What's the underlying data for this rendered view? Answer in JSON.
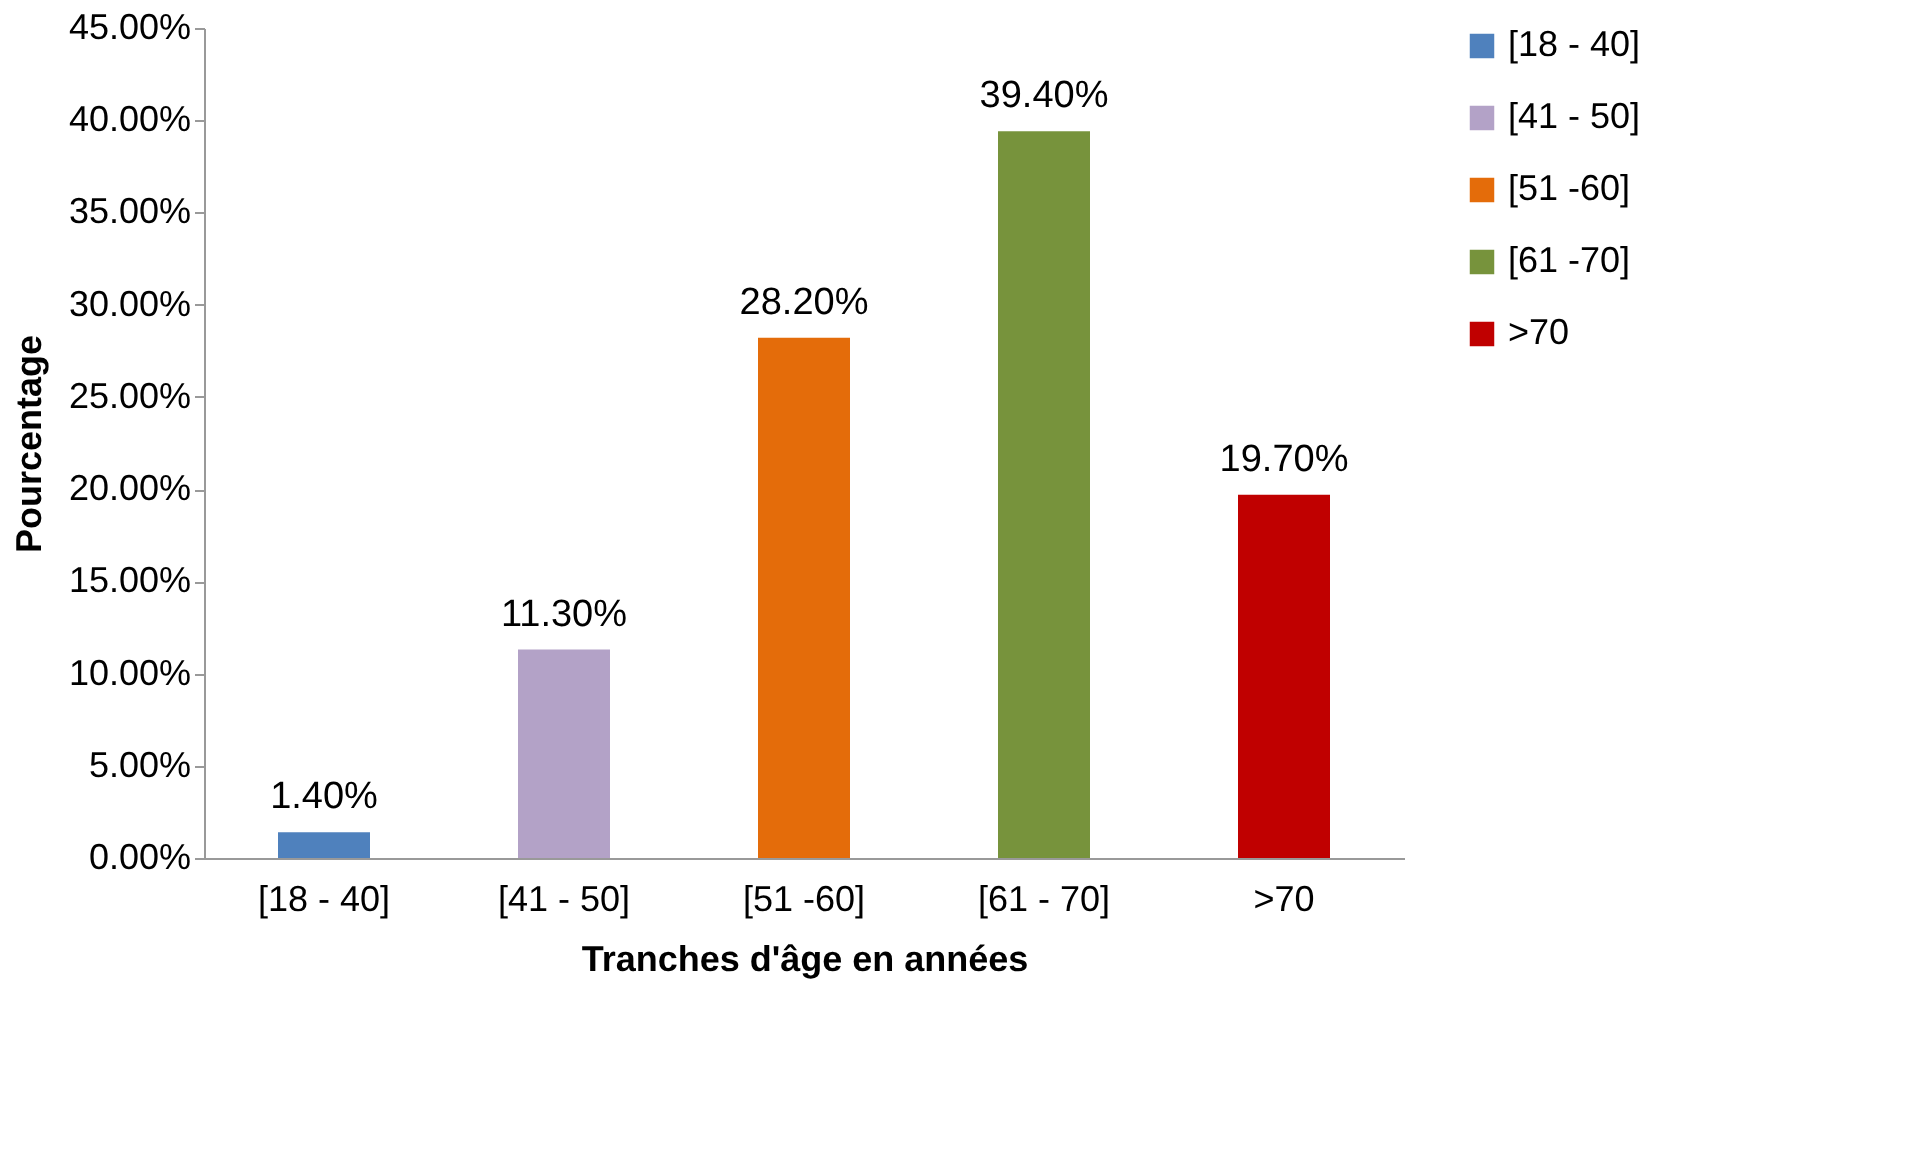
{
  "chart_data": {
    "type": "bar",
    "xlabel": "Tranches d'âge en années",
    "ylabel": "Pourcentage",
    "categories": [
      "[18 - 40]",
      "[41 - 50]",
      "[51 -60]",
      "[61 - 70]",
      ">70"
    ],
    "series": [
      {
        "name": " [18 - 40]",
        "color": "#4f81bd",
        "values": [
          1.4,
          null,
          null,
          null,
          null
        ],
        "value_labels": [
          "1.40%",
          null,
          null,
          null,
          null
        ]
      },
      {
        "name": "[41 - 50]",
        "color": "#b3a2c7",
        "values": [
          null,
          11.3,
          null,
          null,
          null
        ],
        "value_labels": [
          null,
          "11.30%",
          null,
          null,
          null
        ]
      },
      {
        "name": "[51 -60]",
        "color": "#e46c0a",
        "values": [
          null,
          null,
          28.2,
          null,
          null
        ],
        "value_labels": [
          null,
          null,
          "28.20%",
          null,
          null
        ]
      },
      {
        "name": "[61 -70]",
        "color": "#77933c",
        "values": [
          null,
          null,
          null,
          39.4,
          null
        ],
        "value_labels": [
          null,
          null,
          null,
          "39.40%",
          null
        ]
      },
      {
        "name": ">70",
        "color": "#c00000",
        "values": [
          null,
          null,
          null,
          null,
          19.7
        ],
        "value_labels": [
          null,
          null,
          null,
          null,
          "19.70%"
        ]
      }
    ],
    "ylim": [
      0,
      45
    ],
    "yticks": [
      {
        "value": 0,
        "label": "0.00%"
      },
      {
        "value": 5,
        "label": "5.00%"
      },
      {
        "value": 10,
        "label": "10.00%"
      },
      {
        "value": 15,
        "label": "15.00%"
      },
      {
        "value": 20,
        "label": "20.00%"
      },
      {
        "value": 25,
        "label": "25.00%"
      },
      {
        "value": 30,
        "label": "30.00%"
      },
      {
        "value": 35,
        "label": "35.00%"
      },
      {
        "value": 40,
        "label": "40.00%"
      },
      {
        "value": 45,
        "label": "45.00%"
      }
    ],
    "grid": false,
    "legend": "right"
  }
}
